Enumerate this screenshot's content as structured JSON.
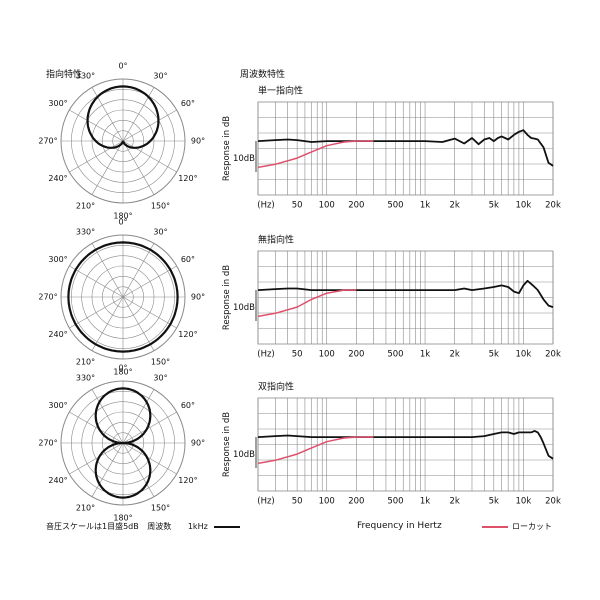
{
  "headers": {
    "polar_title": "指向特性",
    "freq_title": "周波数特性"
  },
  "legend": {
    "scale_note": "音圧スケールは1目盛5dB",
    "freq_label": "周波数",
    "freq_value": "1kHz",
    "xlabel": "Frequency in Hertz",
    "lowcut_label": "ローカット",
    "colors": {
      "main": "#111111",
      "lowcut": "#e0506a",
      "grid": "#8a8a8a"
    }
  },
  "chart_data": [
    {
      "type": "polar",
      "pattern": "cardioid",
      "angle_labels": [
        "0°",
        "30°",
        "60°",
        "90°",
        "120°",
        "150°",
        "180°",
        "210°",
        "240°",
        "270°",
        "300°",
        "330°"
      ],
      "rings": 6,
      "scale_db_per_ring": 5,
      "series": [
        {
          "name": "1kHz",
          "formula": "0.5+0.5cos(theta)",
          "min_value": 0
        }
      ]
    },
    {
      "type": "line",
      "title": "単一指向性",
      "ylabel": "Response in dB",
      "scale_label": "10dB",
      "x_scale": "log",
      "x_range": [
        20,
        20000
      ],
      "x_ticks": [
        "(Hz)",
        "50",
        "100",
        "200",
        "500",
        "1k",
        "2k",
        "5k",
        "10k",
        "20k"
      ],
      "series": [
        {
          "name": "1kHz",
          "x": [
            20,
            30,
            40,
            50,
            70,
            100,
            150,
            200,
            300,
            500,
            700,
            1000,
            1500,
            2000,
            2500,
            3000,
            3500,
            4000,
            4500,
            5000,
            5500,
            6000,
            7000,
            8000,
            9000,
            10000,
            11000,
            12000,
            13000,
            14000,
            16000,
            18000,
            20000
          ],
          "y": [
            0,
            0.3,
            0.5,
            0.3,
            -0.3,
            0,
            0,
            0,
            0,
            0,
            0,
            0,
            -0.3,
            0.8,
            -0.8,
            1,
            -1,
            0.5,
            1,
            0,
            1,
            1.5,
            0.5,
            2,
            3,
            3.5,
            2,
            1,
            0.8,
            0.5,
            -2,
            -7,
            -8
          ]
        },
        {
          "name": "ローカット",
          "x": [
            20,
            30,
            50,
            70,
            100,
            150,
            200,
            300
          ],
          "y": [
            -8.5,
            -7.5,
            -5.5,
            -3.5,
            -1.5,
            -0.3,
            0,
            0
          ]
        }
      ]
    },
    {
      "type": "polar",
      "pattern": "omnidirectional",
      "angle_labels": [
        "0°",
        "30°",
        "60°",
        "90°",
        "120°",
        "150°",
        "180°",
        "210°",
        "240°",
        "270°",
        "300°",
        "330°"
      ],
      "rings": 6,
      "scale_db_per_ring": 5,
      "series": [
        {
          "name": "1kHz",
          "formula": "1",
          "min_value": 0
        }
      ]
    },
    {
      "type": "line",
      "title": "無指向性",
      "ylabel": "Response in dB",
      "scale_label": "10dB",
      "x_scale": "log",
      "x_range": [
        20,
        20000
      ],
      "x_ticks": [
        "(Hz)",
        "50",
        "100",
        "200",
        "500",
        "1k",
        "2k",
        "5k",
        "10k",
        "20k"
      ],
      "series": [
        {
          "name": "1kHz",
          "x": [
            20,
            30,
            40,
            50,
            70,
            100,
            150,
            200,
            300,
            500,
            1000,
            1500,
            2000,
            2500,
            3000,
            4000,
            5000,
            6000,
            7000,
            8000,
            9000,
            10000,
            11000,
            12000,
            13000,
            14000,
            16000,
            18000,
            20000
          ],
          "y": [
            0,
            0.3,
            0.5,
            0.5,
            0,
            0,
            0,
            0,
            0,
            0,
            0,
            0,
            0,
            0.5,
            0,
            0.5,
            1,
            1.5,
            1,
            -0.5,
            -1,
            1.5,
            3,
            2,
            1,
            0,
            -3,
            -5,
            -5.5
          ]
        },
        {
          "name": "ローカット",
          "x": [
            20,
            30,
            50,
            70,
            100,
            150,
            200
          ],
          "y": [
            -8.5,
            -7.5,
            -5.5,
            -3,
            -1,
            0,
            0
          ]
        }
      ]
    },
    {
      "type": "polar",
      "pattern": "bidirectional",
      "angle_labels": [
        "0°",
        "30°",
        "60°",
        "90°",
        "120°",
        "150°",
        "180°",
        "210°",
        "240°",
        "270°",
        "300°",
        "330°"
      ],
      "rings": 6,
      "scale_db_per_ring": 5,
      "series": [
        {
          "name": "1kHz",
          "formula": "|cos(theta)|",
          "min_value": 0
        }
      ]
    },
    {
      "type": "line",
      "title": "双指向性",
      "ylabel": "Response in dB",
      "scale_label": "10dB",
      "x_scale": "log",
      "x_range": [
        20,
        20000
      ],
      "x_ticks": [
        "(Hz)",
        "50",
        "100",
        "200",
        "500",
        "1k",
        "2k",
        "5k",
        "10k",
        "20k"
      ],
      "series": [
        {
          "name": "1kHz",
          "x": [
            20,
            30,
            40,
            50,
            70,
            100,
            150,
            200,
            300,
            500,
            1000,
            2000,
            3000,
            4000,
            5000,
            6000,
            7000,
            8000,
            9000,
            10000,
            11000,
            12000,
            13000,
            14000,
            15000,
            16000,
            18000,
            20000
          ],
          "y": [
            0,
            0.3,
            0.5,
            0.3,
            0,
            0,
            0,
            0,
            0,
            0,
            0,
            0,
            0,
            0.3,
            1,
            1.5,
            1.5,
            1,
            1.5,
            1.5,
            1.5,
            1.5,
            2,
            1.5,
            0,
            -2,
            -6,
            -7
          ]
        },
        {
          "name": "ローカット",
          "x": [
            20,
            30,
            50,
            70,
            100,
            150,
            200,
            300
          ],
          "y": [
            -8.5,
            -7.5,
            -5.5,
            -3.5,
            -1.5,
            -0.3,
            0,
            0
          ]
        }
      ]
    }
  ]
}
